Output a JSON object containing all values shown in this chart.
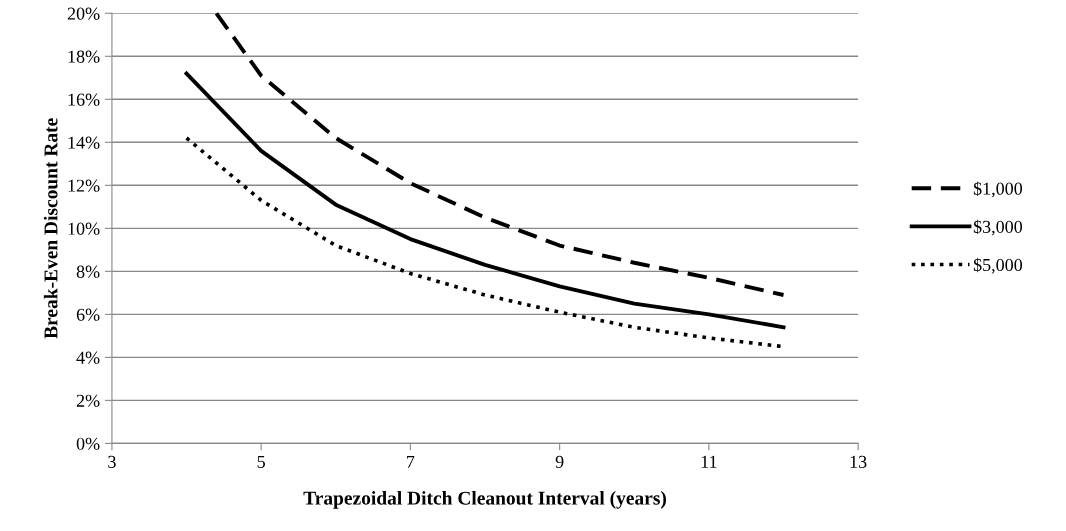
{
  "chart_data": {
    "type": "line",
    "xlabel": "Trapezoidal Ditch Cleanout Interval (years)",
    "ylabel": "Break-Even Discount Rate",
    "xlim": [
      3,
      13
    ],
    "xticks": [
      3,
      5,
      7,
      9,
      11,
      13
    ],
    "ylim": [
      0,
      20
    ],
    "yticks": [
      {
        "value": 0,
        "label": "0%"
      },
      {
        "value": 2,
        "label": "2%"
      },
      {
        "value": 4,
        "label": "4%"
      },
      {
        "value": 6,
        "label": "6%"
      },
      {
        "value": 8,
        "label": "8%"
      },
      {
        "value": 10,
        "label": "10%"
      },
      {
        "value": 12,
        "label": "12%"
      },
      {
        "value": 14,
        "label": "14%"
      },
      {
        "value": 16,
        "label": "16%"
      },
      {
        "value": 18,
        "label": "18%"
      },
      {
        "value": 20,
        "label": "20%"
      }
    ],
    "grid": "y",
    "legend": "right",
    "marker": "none",
    "series": [
      {
        "name": "$1,000",
        "color": "#000000",
        "line_style": "dashed",
        "x": [
          4.4,
          5,
          6,
          7,
          8,
          9,
          10,
          11,
          12
        ],
        "values": [
          20,
          17.1,
          14.2,
          12.1,
          10.5,
          9.2,
          8.4,
          7.7,
          6.9
        ]
      },
      {
        "name": "$3,000",
        "color": "#000000",
        "line_style": "solid",
        "x": [
          4,
          5,
          6,
          7,
          8,
          9,
          10,
          11,
          12
        ],
        "values": [
          17.2,
          13.6,
          11.1,
          9.5,
          8.3,
          7.3,
          6.5,
          6.0,
          5.4
        ]
      },
      {
        "name": "$5,000",
        "color": "#000000",
        "line_style": "dotted",
        "x": [
          4,
          5,
          6,
          7,
          8,
          9,
          10,
          11,
          12
        ],
        "values": [
          14.2,
          11.3,
          9.2,
          7.9,
          6.9,
          6.1,
          5.4,
          4.9,
          4.5
        ]
      }
    ]
  }
}
